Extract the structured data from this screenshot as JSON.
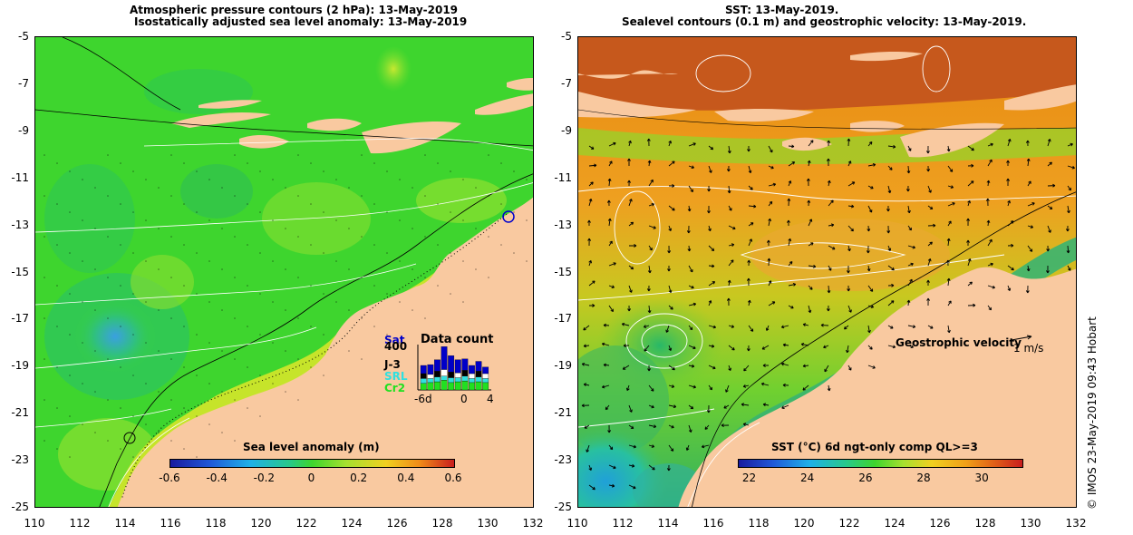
{
  "left_panel": {
    "title_line1": "Atmospheric pressure contours (2 hPa): 13-May-2019",
    "title_line2": "Isostatically adjusted sea level anomaly: 13-May-2019",
    "colorbar_label": "Sea level anomaly (m)",
    "colorbar_ticks": [
      "-0.6",
      "-0.4",
      "-0.2",
      "0",
      "0.2",
      "0.4",
      "0.6"
    ],
    "data_count_title": "Data count",
    "data_count_labels": [
      "Sat",
      "400",
      "J-3",
      "SRL",
      "Cr2"
    ],
    "data_count_axis": [
      "-6d",
      "0",
      "4"
    ]
  },
  "right_panel": {
    "title_line1": "SST: 13-May-2019.",
    "title_line2": "Sealevel contours (0.1 m) and geostrophic velocity: 13-May-2019.",
    "colorbar_label": "SST (°C) 6d ngt-only comp QL>=3",
    "colorbar_ticks": [
      "22",
      "24",
      "26",
      "28",
      "30"
    ],
    "velocity_label": "Geostrophic velocity",
    "velocity_unit": "1 m/s"
  },
  "axes": {
    "y_ticks": [
      "-5",
      "-7",
      "-9",
      "-11",
      "-13",
      "-15",
      "-17",
      "-19",
      "-21",
      "-23",
      "-25"
    ],
    "x_ticks": [
      "110",
      "112",
      "114",
      "116",
      "118",
      "120",
      "122",
      "124",
      "126",
      "128",
      "130",
      "132"
    ]
  },
  "credit": "© IMOS 23-May-2019 09:43 Hobart",
  "colors": {
    "land": "#f9c9a0",
    "sla_mid": "#38d62a",
    "sst_warm": "#ee8a10",
    "sst_north": "#c9581a"
  }
}
